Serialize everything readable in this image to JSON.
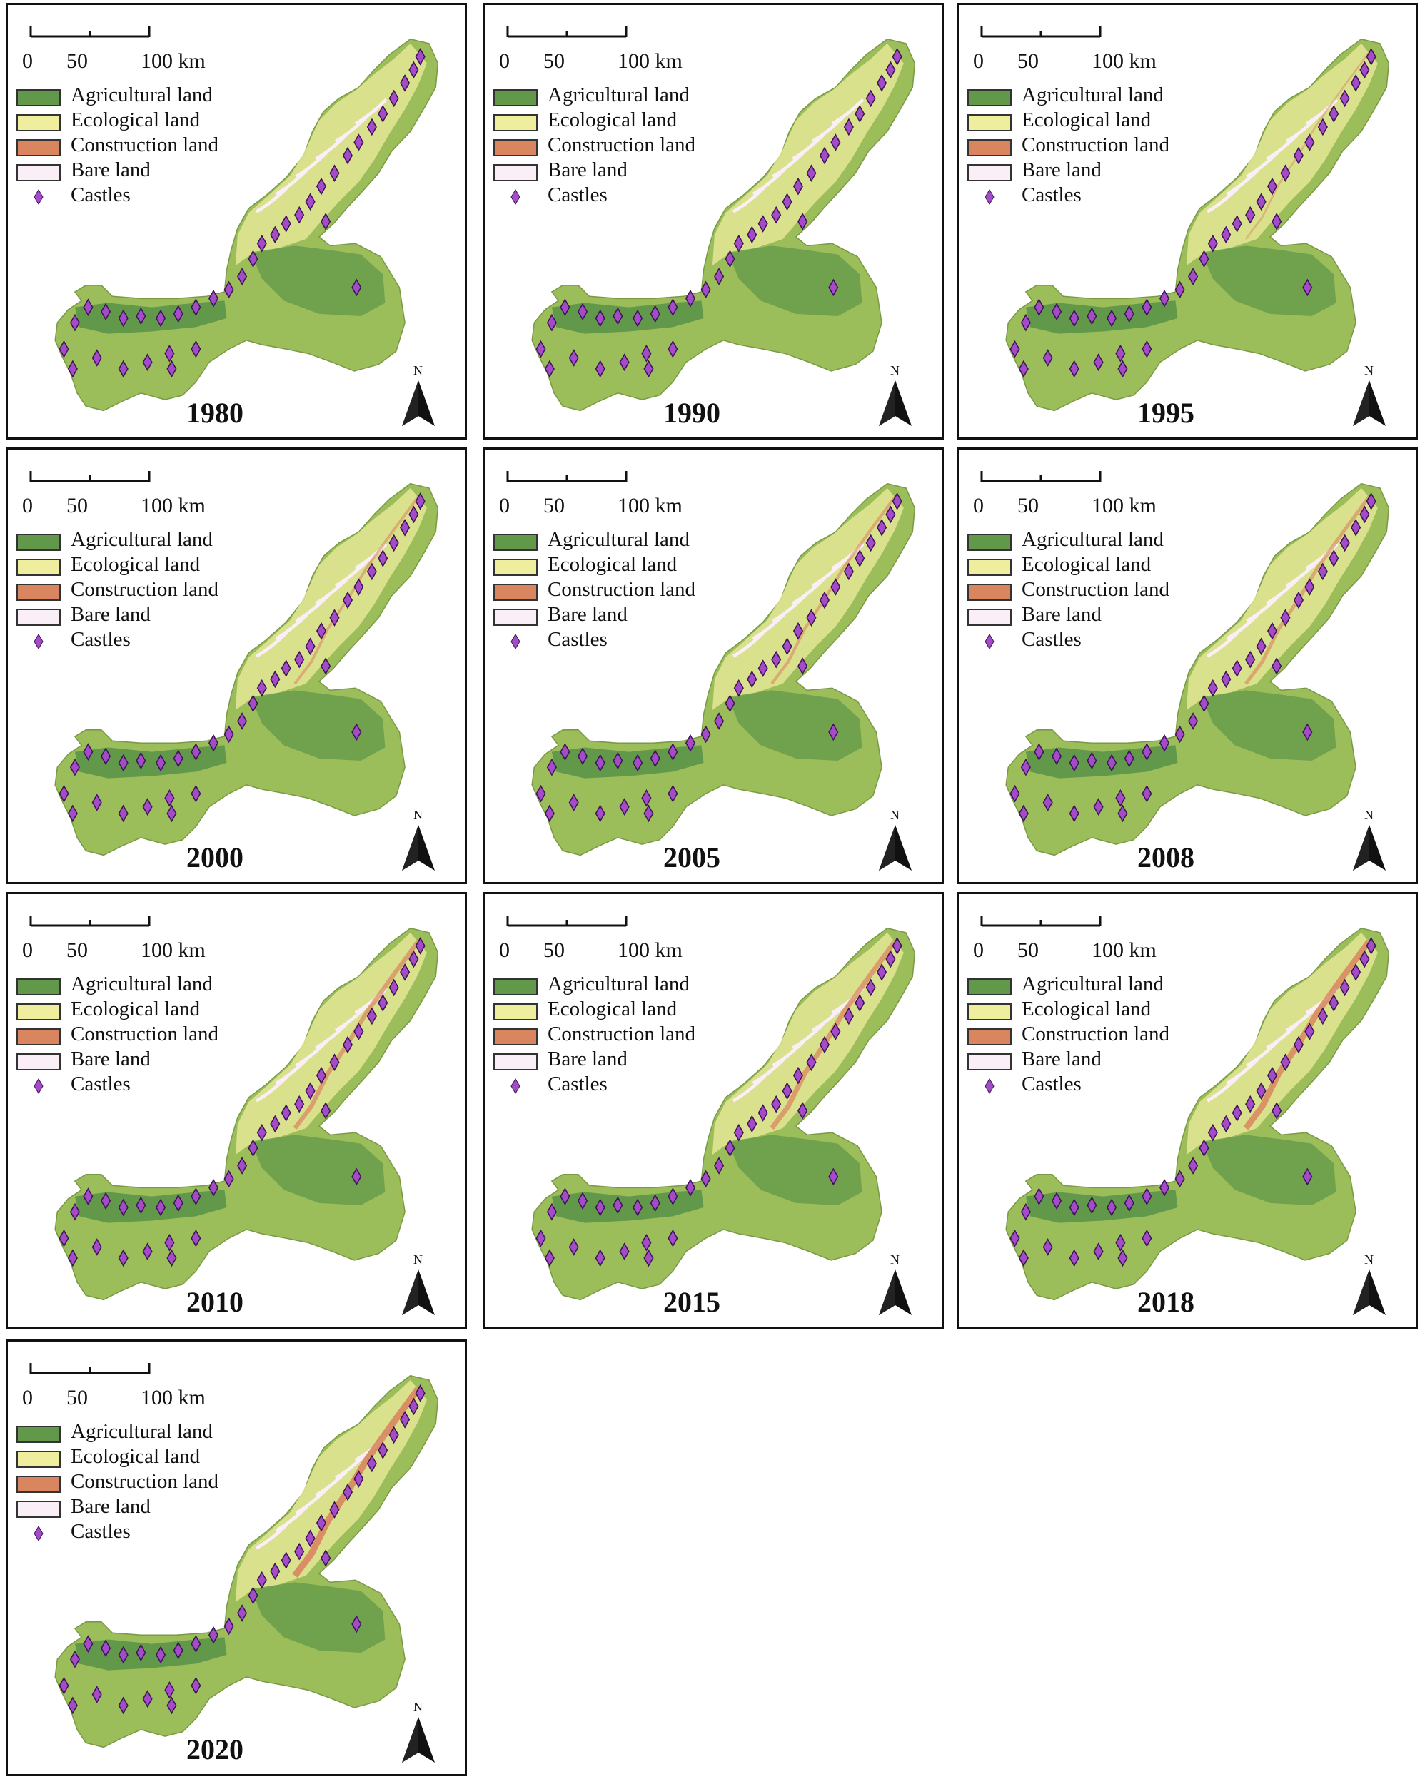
{
  "scale": {
    "ticks": [
      "0",
      "50",
      "100 km"
    ]
  },
  "legend": [
    {
      "label": "Agricultural land",
      "color": "#62984a"
    },
    {
      "label": "Ecological land",
      "color": "#efee9e"
    },
    {
      "label": "Construction land",
      "color": "#d98560"
    },
    {
      "label": "Bare land",
      "color": "#faeef7"
    },
    {
      "label": "Castles",
      "color": "#a54bc9",
      "symbol": "diamond"
    }
  ],
  "north_label": "N",
  "icons": {
    "north": "north-arrow-icon",
    "castle": "diamond-icon"
  },
  "panels": [
    {
      "year": "1980"
    },
    {
      "year": "1990"
    },
    {
      "year": "1995"
    },
    {
      "year": "2000"
    },
    {
      "year": "2005"
    },
    {
      "year": "2008"
    },
    {
      "year": "2010"
    },
    {
      "year": "2015"
    },
    {
      "year": "2018"
    },
    {
      "year": "2020"
    }
  ]
}
